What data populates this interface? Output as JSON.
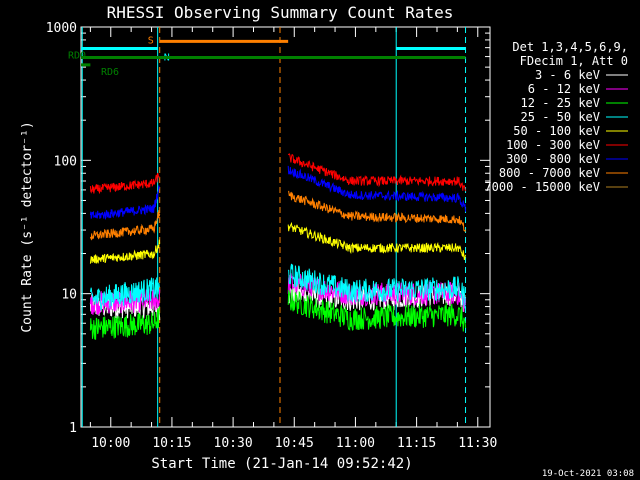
{
  "chart_data": {
    "type": "line",
    "title": "RHESSI Observing Summary Count Rates",
    "xlabel": "Start Time (21-Jan-14 09:52:42)",
    "ylabel": "Count Rate (s⁻¹ detector⁻¹)",
    "yscale": "log",
    "ylim": [
      1,
      1000
    ],
    "x_units": "minutes after 09:52:42",
    "xlim_clock": [
      "09:52:42",
      "11:33:00"
    ],
    "x_tick_labels": [
      "10:00",
      "10:15",
      "10:30",
      "10:45",
      "11:00",
      "11:15",
      "11:30"
    ],
    "y_tick_labels": [
      "1",
      "10",
      "100",
      "1000"
    ],
    "timestamp": "19-Oct-2021 03:08",
    "legend_header": [
      "Det 1,3,4,5,6,9,",
      "FDecim 1, Att 0"
    ],
    "segments_clock": [
      [
        "09:55:00",
        "10:12:00"
      ],
      [
        "10:43:30",
        "11:27:00"
      ]
    ],
    "series": [
      {
        "name": "3 - 6 keV",
        "color": "#ffffff",
        "values": [
          8,
          8,
          10,
          9,
          10
        ]
      },
      {
        "name": "6 - 12 keV",
        "color": "#ff00ff",
        "values": [
          8.5,
          9,
          12,
          10,
          10
        ]
      },
      {
        "name": "12 - 25 keV",
        "color": "#00ff00",
        "values": [
          5.5,
          6,
          9,
          6.5,
          7
        ]
      },
      {
        "name": "25 - 50 keV",
        "color": "#00ffff",
        "values": [
          9,
          11,
          14,
          10.5,
          11
        ]
      },
      {
        "name": "50 - 100 keV",
        "color": "#ffff00",
        "values": [
          18,
          20,
          32,
          22,
          22
        ]
      },
      {
        "name": "100 - 300 keV",
        "color": "#ff0000",
        "values": [
          60,
          68,
          105,
          70,
          70
        ]
      },
      {
        "name": "300 - 800 keV",
        "color": "#0000ff",
        "values": [
          38,
          44,
          85,
          55,
          52
        ]
      },
      {
        "name": "800 - 7000 keV",
        "color": "#ff8000",
        "values": [
          27,
          31,
          55,
          38,
          36
        ]
      },
      {
        "name": "7000 - 15000 keV",
        "color": "#b08020",
        "values": []
      }
    ],
    "flags": [
      {
        "label": "S",
        "color": "#ff8000",
        "value": 780,
        "start": "10:12:00",
        "end": "10:43:30"
      },
      {
        "label": "N",
        "color": "#00ffff",
        "value": 690,
        "start": "10:12:00",
        "end": "10:12:00"
      },
      {
        "label": "RD0",
        "color": "#008000",
        "value": 590,
        "start": "09:52:42",
        "end": "11:27:00"
      },
      {
        "label": "RD6",
        "color": "#008000",
        "value": 520,
        "start": "09:52:42",
        "end": "09:55:00"
      }
    ],
    "cyan_flag_bars_clock": [
      [
        "09:52:42",
        "10:11:30"
      ],
      [
        "11:10:00",
        "11:27:00"
      ]
    ],
    "vlines_clock": [
      {
        "t": "09:53:00",
        "color": "#00ffff",
        "style": "solid"
      },
      {
        "t": "10:11:30",
        "color": "#00ffff",
        "style": "solid"
      },
      {
        "t": "10:12:00",
        "color": "#ff8000",
        "style": "dashed"
      },
      {
        "t": "10:41:30",
        "color": "#ff8000",
        "style": "dashed"
      },
      {
        "t": "11:10:00",
        "color": "#00ffff",
        "style": "solid"
      },
      {
        "t": "11:27:00",
        "color": "#00ffff",
        "style": "dashed"
      }
    ]
  }
}
